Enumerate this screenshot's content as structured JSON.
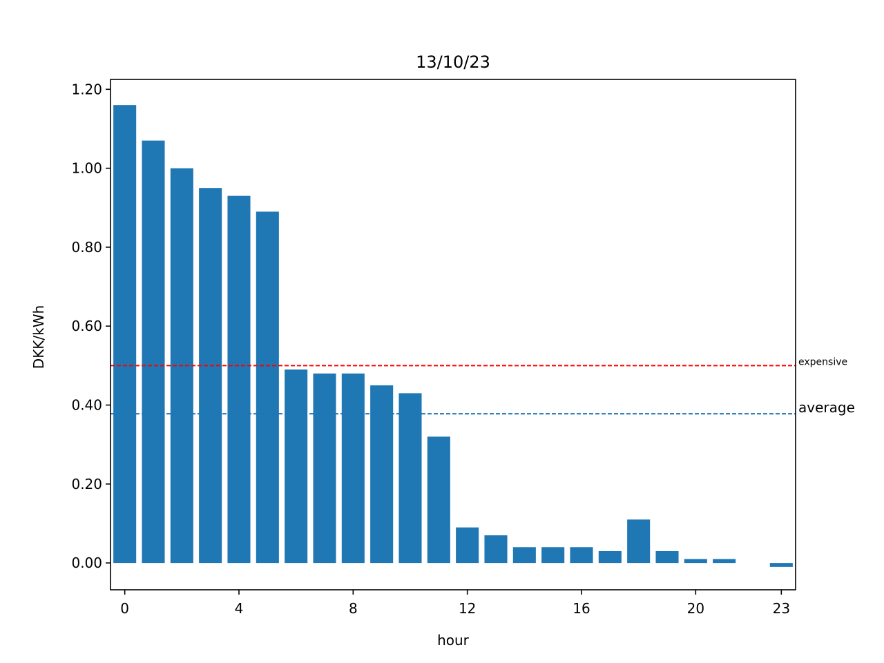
{
  "chart_data": {
    "type": "bar",
    "title": "13/10/23",
    "xlabel": "hour",
    "ylabel": "DKK/kWh",
    "x": [
      0,
      1,
      2,
      3,
      4,
      5,
      6,
      7,
      8,
      9,
      10,
      11,
      12,
      13,
      14,
      15,
      16,
      17,
      18,
      19,
      20,
      21,
      22,
      23
    ],
    "values": [
      1.16,
      1.07,
      1.0,
      0.95,
      0.93,
      0.89,
      0.49,
      0.48,
      0.48,
      0.45,
      0.43,
      0.32,
      0.09,
      0.07,
      0.04,
      0.04,
      0.04,
      0.03,
      0.11,
      0.03,
      0.01,
      0.01,
      0.0,
      -0.01
    ],
    "xlim": [
      -0.5,
      23.5
    ],
    "ylim": [
      -0.068,
      1.225
    ],
    "xticks": [
      0,
      4,
      8,
      12,
      16,
      20,
      23
    ],
    "yticks": [
      0.0,
      0.2,
      0.4,
      0.6,
      0.8,
      1.0,
      1.2
    ],
    "ytick_labels": [
      "0.00",
      "0.20",
      "0.40",
      "0.60",
      "0.80",
      "1.00",
      "1.20"
    ],
    "bar_color": "#1f77b4",
    "reference_lines": [
      {
        "name": "expensive",
        "label": "expensive",
        "value": 0.5,
        "color": "#ff0000"
      },
      {
        "name": "average",
        "label": "average",
        "value": 0.378,
        "color": "#1f77b4"
      }
    ],
    "grid": false
  }
}
